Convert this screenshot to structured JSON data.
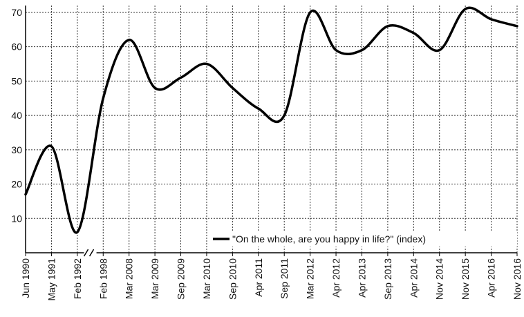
{
  "chart_data": {
    "type": "line",
    "title": "",
    "xlabel": "",
    "ylabel": "",
    "ylim": [
      0,
      72
    ],
    "yticks": [
      10,
      20,
      30,
      40,
      50,
      60,
      70
    ],
    "grid": true,
    "grid_style": "dashed",
    "legend_position": "bottom-right",
    "axis_break": "between Feb 1992 and Feb 1998",
    "colors": {
      "line": "#000000",
      "grid": "#333333",
      "axis": "#000000"
    },
    "categories": [
      "Jun 1990",
      "May 1991",
      "Feb 1992",
      "Feb 1998",
      "Mar 2008",
      "Mar 2009",
      "Sep 2009",
      "Mar 2010",
      "Sep 2010",
      "Apr 2011",
      "Sep 2011",
      "Mar 2012",
      "Apr 2012",
      "Apr 2013",
      "Sep 2013",
      "Apr 2014",
      "Nov 2014",
      "Nov 2015",
      "Apr 2016",
      "Nov 2016"
    ],
    "series": [
      {
        "name": "\"On the whole, are you happy in life?\" (index)",
        "values": [
          17,
          31,
          6,
          45,
          62,
          48,
          51,
          55,
          48,
          42,
          40,
          70,
          59,
          59,
          66,
          64,
          59,
          71,
          68,
          66
        ]
      }
    ]
  }
}
